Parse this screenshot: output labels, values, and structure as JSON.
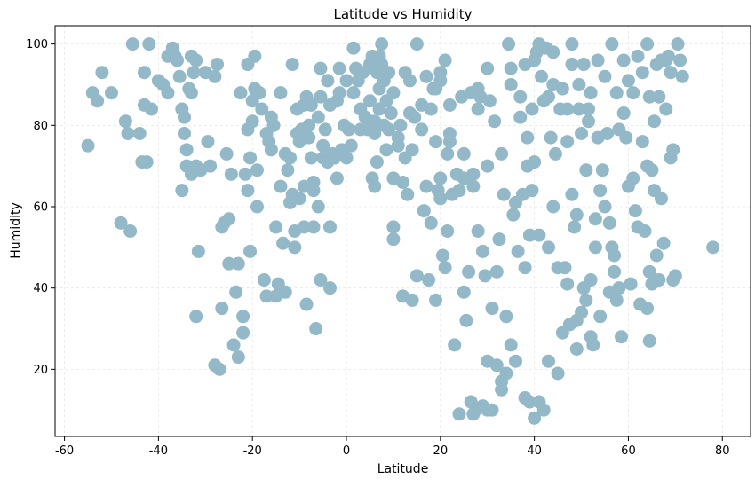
{
  "chart_data": {
    "type": "scatter",
    "title": "Latitude vs Humidity",
    "xlabel": "Latitude",
    "ylabel": "Humidity",
    "xlim": [
      -62,
      86
    ],
    "ylim": [
      3.5,
      104.5
    ],
    "xticks": [
      -60,
      -40,
      -20,
      0,
      20,
      40,
      60,
      80
    ],
    "yticks": [
      20,
      40,
      60,
      80,
      100
    ],
    "grid": true,
    "colors": {
      "marker": "#93b8c8",
      "grid": "#e6e6e6",
      "axis": "#000000"
    },
    "points": [
      [
        -55,
        75
      ],
      [
        -54,
        88
      ],
      [
        -53,
        86
      ],
      [
        -52,
        93
      ],
      [
        -50,
        88
      ],
      [
        -48,
        56
      ],
      [
        -47,
        81
      ],
      [
        -46.5,
        78
      ],
      [
        -46,
        54
      ],
      [
        -45.5,
        100
      ],
      [
        -44,
        78
      ],
      [
        -43.5,
        71
      ],
      [
        -43,
        93
      ],
      [
        -43,
        85
      ],
      [
        -42.5,
        71
      ],
      [
        -42,
        100
      ],
      [
        -41.5,
        84
      ],
      [
        -40,
        91
      ],
      [
        -39,
        90
      ],
      [
        -38,
        97
      ],
      [
        -38,
        88
      ],
      [
        -37,
        99
      ],
      [
        -36.5,
        97
      ],
      [
        -36,
        96
      ],
      [
        -35.5,
        92
      ],
      [
        -35,
        84
      ],
      [
        -35,
        64
      ],
      [
        -34.5,
        78
      ],
      [
        -34.5,
        82
      ],
      [
        -34,
        74
      ],
      [
        -34,
        70
      ],
      [
        -33.5,
        89
      ],
      [
        -33,
        97
      ],
      [
        -33,
        68
      ],
      [
        -33,
        88
      ],
      [
        -32.5,
        93
      ],
      [
        -32,
        70
      ],
      [
        -32,
        96
      ],
      [
        -32,
        33
      ],
      [
        -31.5,
        49
      ],
      [
        -31,
        69
      ],
      [
        -30,
        93
      ],
      [
        -29.5,
        76
      ],
      [
        -29,
        70
      ],
      [
        -28,
        21
      ],
      [
        -28,
        92
      ],
      [
        -27.5,
        95
      ],
      [
        -27,
        20
      ],
      [
        -26.5,
        55
      ],
      [
        -26.5,
        35
      ],
      [
        -26,
        56
      ],
      [
        -25.5,
        73
      ],
      [
        -25,
        57
      ],
      [
        -25,
        46
      ],
      [
        -24.5,
        68
      ],
      [
        -24,
        26
      ],
      [
        -23.5,
        39
      ],
      [
        -23,
        23
      ],
      [
        -23,
        46
      ],
      [
        -22.5,
        88
      ],
      [
        -22,
        29
      ],
      [
        -22,
        33
      ],
      [
        -21.5,
        68
      ],
      [
        -21,
        95
      ],
      [
        -21,
        64
      ],
      [
        -21,
        79
      ],
      [
        -20.5,
        72
      ],
      [
        -20.5,
        49
      ],
      [
        -20,
        86
      ],
      [
        -20,
        81
      ],
      [
        -19.5,
        89
      ],
      [
        -19.5,
        97
      ],
      [
        -19,
        60
      ],
      [
        -19,
        69
      ],
      [
        -18.5,
        88
      ],
      [
        -18,
        84
      ],
      [
        -17.5,
        42
      ],
      [
        -17,
        78
      ],
      [
        -17,
        38
      ],
      [
        -16.5,
        76
      ],
      [
        -16,
        74
      ],
      [
        -16,
        82
      ],
      [
        -15.5,
        80
      ],
      [
        -15,
        55
      ],
      [
        -15,
        38
      ],
      [
        -14.5,
        41
      ],
      [
        -14,
        88
      ],
      [
        -14,
        65
      ],
      [
        -13.5,
        51
      ],
      [
        -13,
        39
      ],
      [
        -13,
        73
      ],
      [
        -12.5,
        69
      ],
      [
        -12,
        72
      ],
      [
        -12,
        61
      ],
      [
        -11.5,
        95
      ],
      [
        -11.5,
        63
      ],
      [
        -11,
        54
      ],
      [
        -11,
        50
      ],
      [
        -10.5,
        78
      ],
      [
        -10.5,
        84
      ],
      [
        -10,
        62
      ],
      [
        -10,
        76
      ],
      [
        -9.5,
        79
      ],
      [
        -9,
        85
      ],
      [
        -9,
        65
      ],
      [
        -9,
        55
      ],
      [
        -8.5,
        36
      ],
      [
        -8.5,
        87
      ],
      [
        -8,
        77
      ],
      [
        -8,
        80
      ],
      [
        -7.5,
        72
      ],
      [
        -7.5,
        85
      ],
      [
        -7,
        66
      ],
      [
        -7,
        64
      ],
      [
        -7,
        55
      ],
      [
        -6.5,
        30
      ],
      [
        -6,
        82
      ],
      [
        -6,
        60
      ],
      [
        -5.5,
        94
      ],
      [
        -5.5,
        87
      ],
      [
        -5.5,
        42
      ],
      [
        -5,
        75
      ],
      [
        -5,
        72
      ],
      [
        -4.5,
        79
      ],
      [
        -4,
        91
      ],
      [
        -4,
        71
      ],
      [
        -3.5,
        85
      ],
      [
        -3.5,
        55
      ],
      [
        -3.5,
        40
      ],
      [
        -3,
        73
      ],
      [
        -2.5,
        72
      ],
      [
        -2,
        86
      ],
      [
        -2,
        67
      ],
      [
        -1.5,
        94
      ],
      [
        -1.5,
        88
      ],
      [
        -1,
        74
      ],
      [
        -0.5,
        80
      ],
      [
        0,
        91
      ],
      [
        0,
        72
      ],
      [
        0.5,
        79
      ],
      [
        1,
        75
      ],
      [
        1.5,
        99
      ],
      [
        1.5,
        88
      ],
      [
        2,
        94
      ],
      [
        2.5,
        91
      ],
      [
        3,
        79
      ],
      [
        3,
        84
      ],
      [
        3.5,
        93
      ],
      [
        4,
        82
      ],
      [
        4.5,
        79
      ],
      [
        5,
        95
      ],
      [
        5,
        86
      ],
      [
        5.5,
        97
      ],
      [
        5.5,
        67
      ],
      [
        6,
        81
      ],
      [
        6,
        78
      ],
      [
        6,
        65
      ],
      [
        6.5,
        93
      ],
      [
        6.5,
        71
      ],
      [
        7,
        97
      ],
      [
        7,
        89
      ],
      [
        7,
        84
      ],
      [
        7.5,
        95
      ],
      [
        7.5,
        100
      ],
      [
        8,
        80
      ],
      [
        8,
        91
      ],
      [
        8.5,
        86
      ],
      [
        8.5,
        74
      ],
      [
        9,
        93
      ],
      [
        9,
        79
      ],
      [
        9.5,
        83
      ],
      [
        10,
        88
      ],
      [
        10,
        67
      ],
      [
        10,
        55
      ],
      [
        10,
        52
      ],
      [
        11,
        77
      ],
      [
        11,
        75
      ],
      [
        11.5,
        80
      ],
      [
        12,
        66
      ],
      [
        12,
        38
      ],
      [
        12.5,
        93
      ],
      [
        12.5,
        72
      ],
      [
        13,
        63
      ],
      [
        13.5,
        91
      ],
      [
        13.5,
        83
      ],
      [
        14,
        74
      ],
      [
        14,
        37
      ],
      [
        14.5,
        82
      ],
      [
        15,
        100
      ],
      [
        15,
        43
      ],
      [
        16,
        79
      ],
      [
        16,
        85
      ],
      [
        16.5,
        59
      ],
      [
        17,
        92
      ],
      [
        17,
        65
      ],
      [
        17.5,
        42
      ],
      [
        18,
        84
      ],
      [
        18,
        56
      ],
      [
        18.5,
        89
      ],
      [
        19,
        89
      ],
      [
        19,
        76
      ],
      [
        19,
        37
      ],
      [
        19.5,
        64
      ],
      [
        20,
        91
      ],
      [
        20,
        93
      ],
      [
        20,
        67
      ],
      [
        20,
        62
      ],
      [
        20.5,
        48
      ],
      [
        21,
        96
      ],
      [
        21,
        45
      ],
      [
        21.5,
        73
      ],
      [
        21.5,
        54
      ],
      [
        22,
        85
      ],
      [
        22,
        78
      ],
      [
        22,
        76
      ],
      [
        22.5,
        63
      ],
      [
        23,
        26
      ],
      [
        23.5,
        68
      ],
      [
        24,
        9
      ],
      [
        24,
        64
      ],
      [
        24.5,
        87
      ],
      [
        25,
        73
      ],
      [
        25,
        67
      ],
      [
        25,
        39
      ],
      [
        25.5,
        32
      ],
      [
        26,
        44
      ],
      [
        26.5,
        88
      ],
      [
        26.5,
        12
      ],
      [
        27,
        68
      ],
      [
        27,
        9
      ],
      [
        27,
        65
      ],
      [
        27.5,
        10
      ],
      [
        28,
        89
      ],
      [
        28,
        84
      ],
      [
        28,
        54
      ],
      [
        28.5,
        87
      ],
      [
        29,
        11
      ],
      [
        29,
        49
      ],
      [
        29.5,
        43
      ],
      [
        30,
        70
      ],
      [
        30,
        22
      ],
      [
        30,
        10
      ],
      [
        30,
        94
      ],
      [
        30.5,
        86
      ],
      [
        31,
        35
      ],
      [
        31,
        10
      ],
      [
        31.5,
        81
      ],
      [
        32,
        44
      ],
      [
        32,
        21
      ],
      [
        32.5,
        52
      ],
      [
        33,
        73
      ],
      [
        33,
        17
      ],
      [
        33,
        15
      ],
      [
        33.5,
        63
      ],
      [
        34,
        33
      ],
      [
        34,
        19
      ],
      [
        34.5,
        100
      ],
      [
        35,
        94
      ],
      [
        35,
        90
      ],
      [
        35,
        26
      ],
      [
        35.5,
        58
      ],
      [
        36,
        61
      ],
      [
        36,
        22
      ],
      [
        36.5,
        49
      ],
      [
        37,
        87
      ],
      [
        37,
        82
      ],
      [
        37.5,
        63
      ],
      [
        38,
        95
      ],
      [
        38,
        45
      ],
      [
        38,
        13
      ],
      [
        38.5,
        77
      ],
      [
        38.5,
        70
      ],
      [
        39,
        53
      ],
      [
        39,
        12
      ],
      [
        39.5,
        84
      ],
      [
        39.5,
        64
      ],
      [
        40,
        96
      ],
      [
        40,
        71
      ],
      [
        40,
        8
      ],
      [
        40.5,
        98
      ],
      [
        41,
        100
      ],
      [
        41,
        53
      ],
      [
        41,
        12
      ],
      [
        41.5,
        92
      ],
      [
        42,
        86
      ],
      [
        42,
        10
      ],
      [
        42.5,
        99
      ],
      [
        43,
        87
      ],
      [
        43,
        50
      ],
      [
        43,
        22
      ],
      [
        43.5,
        77
      ],
      [
        44,
        98
      ],
      [
        44,
        90
      ],
      [
        44,
        60
      ],
      [
        44.5,
        73
      ],
      [
        45,
        45
      ],
      [
        45,
        19
      ],
      [
        45.5,
        84
      ],
      [
        46,
        89
      ],
      [
        46,
        29
      ],
      [
        46.5,
        45
      ],
      [
        47,
        84
      ],
      [
        47,
        76
      ],
      [
        47,
        41
      ],
      [
        47.5,
        31
      ],
      [
        48,
        100
      ],
      [
        48,
        95
      ],
      [
        48,
        63
      ],
      [
        48.5,
        55
      ],
      [
        49,
        32
      ],
      [
        49,
        25
      ],
      [
        49,
        58
      ],
      [
        49.5,
        90
      ],
      [
        49.5,
        84
      ],
      [
        50,
        34
      ],
      [
        50,
        78
      ],
      [
        50.5,
        95
      ],
      [
        50.5,
        40
      ],
      [
        51,
        69
      ],
      [
        51,
        37
      ],
      [
        51.5,
        84
      ],
      [
        51.5,
        81
      ],
      [
        52,
        88
      ],
      [
        52,
        42
      ],
      [
        52,
        28
      ],
      [
        52.5,
        26
      ],
      [
        53,
        57
      ],
      [
        53,
        50
      ],
      [
        53.5,
        96
      ],
      [
        53.5,
        77
      ],
      [
        54,
        64
      ],
      [
        54,
        33
      ],
      [
        54.5,
        69
      ],
      [
        55,
        92
      ],
      [
        55,
        60
      ],
      [
        55.5,
        78
      ],
      [
        56,
        56
      ],
      [
        56,
        39
      ],
      [
        56.5,
        100
      ],
      [
        56.5,
        50
      ],
      [
        57,
        48
      ],
      [
        57,
        44
      ],
      [
        57.5,
        88
      ],
      [
        57.5,
        37
      ],
      [
        58,
        79
      ],
      [
        58,
        40
      ],
      [
        58.5,
        28
      ],
      [
        59,
        96
      ],
      [
        59,
        83
      ],
      [
        59.5,
        77
      ],
      [
        60,
        91
      ],
      [
        60,
        65
      ],
      [
        60.5,
        41
      ],
      [
        61,
        88
      ],
      [
        61,
        67
      ],
      [
        61.5,
        59
      ],
      [
        62,
        97
      ],
      [
        62,
        55
      ],
      [
        62.5,
        36
      ],
      [
        63,
        93
      ],
      [
        63,
        76
      ],
      [
        63.5,
        54
      ],
      [
        64,
        100
      ],
      [
        64,
        70
      ],
      [
        64,
        35
      ],
      [
        64.5,
        87
      ],
      [
        64.5,
        44
      ],
      [
        64.5,
        27
      ],
      [
        65,
        69
      ],
      [
        65,
        41
      ],
      [
        65.5,
        81
      ],
      [
        65.5,
        64
      ],
      [
        66,
        95
      ],
      [
        66,
        48
      ],
      [
        66.5,
        87
      ],
      [
        66.5,
        42
      ],
      [
        67,
        96
      ],
      [
        67,
        62
      ],
      [
        67.5,
        51
      ],
      [
        68,
        84
      ],
      [
        68,
        96
      ],
      [
        68.5,
        97
      ],
      [
        69,
        93
      ],
      [
        69,
        72
      ],
      [
        69.5,
        74
      ],
      [
        69.5,
        42
      ],
      [
        70,
        43
      ],
      [
        70.5,
        100
      ],
      [
        71,
        96
      ],
      [
        71.5,
        92
      ],
      [
        78,
        50
      ]
    ]
  }
}
